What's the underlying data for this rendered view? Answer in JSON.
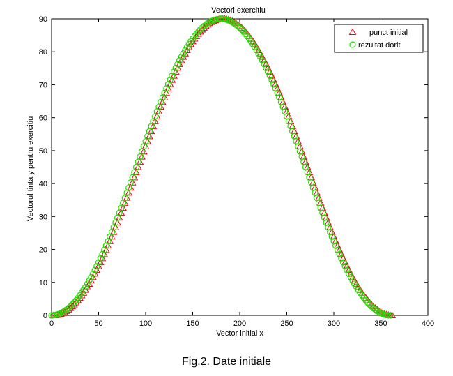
{
  "caption": "Fig.2. Date initiale",
  "chart_data": {
    "type": "scatter",
    "title": "Vectori exercitiu",
    "xlabel": "Vector initial x",
    "ylabel": "Vectorul tinta y pentru exercitiu",
    "xlim": [
      0,
      400
    ],
    "ylim": [
      0,
      90
    ],
    "xticks": [
      "0",
      "50",
      "100",
      "150",
      "200",
      "250",
      "300",
      "350",
      "400"
    ],
    "yticks": [
      "0",
      "10",
      "20",
      "30",
      "40",
      "50",
      "60",
      "70",
      "80",
      "90"
    ],
    "grid": false,
    "legend_position": "top-right",
    "series": [
      {
        "name": "punct initial",
        "marker": "triangle",
        "color": "#e8001c",
        "x_start": 0,
        "x_end": 360,
        "x_step": 2,
        "formula": "y = 90 * sin(x * pi / 360)^2",
        "dx": 2
      },
      {
        "name": "rezultat dorit",
        "marker": "circle",
        "color": "#22dd00",
        "x_start": 0,
        "x_end": 360,
        "x_step": 2,
        "formula": "y = 90 * sin(x * pi / 360)^2",
        "dx": 0
      }
    ]
  }
}
